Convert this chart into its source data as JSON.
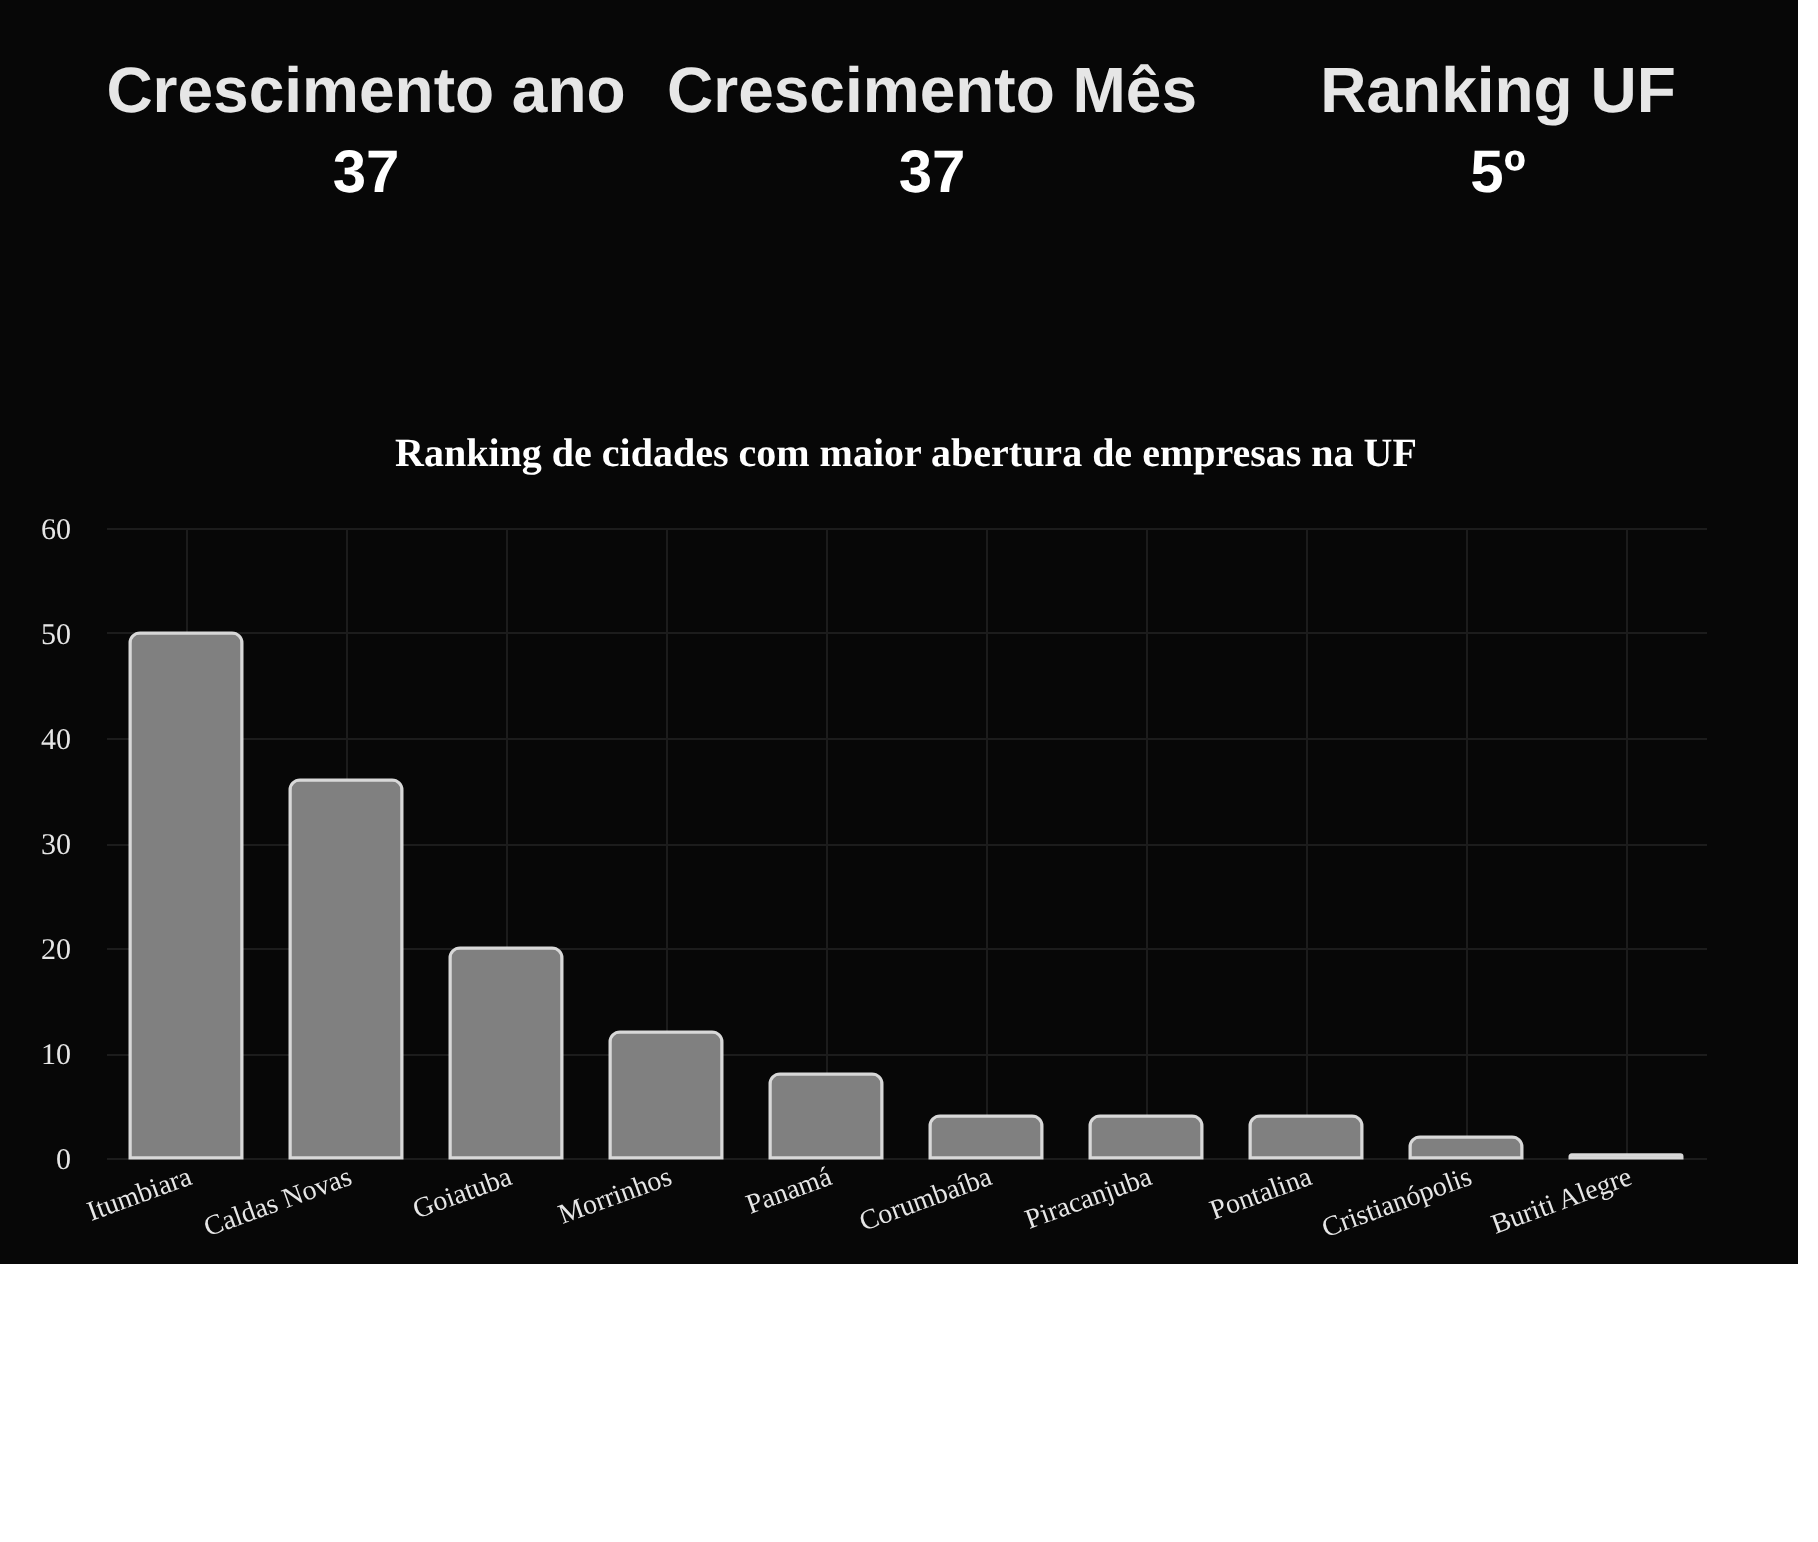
{
  "chart_data": [
    {
      "type": "other",
      "title": "Crescimento ano",
      "annotations": [
        "37"
      ]
    },
    {
      "type": "other",
      "title": "Crescimento Mês",
      "annotations": [
        "37"
      ]
    },
    {
      "type": "other",
      "title": "Ranking UF",
      "annotations": [
        "5º"
      ]
    },
    {
      "type": "bar",
      "title": "Ranking de cidades com maior abertura de empresas na UF",
      "categories": [
        "Itumbiara",
        "Caldas Novas",
        "Goiatuba",
        "Morrinhos",
        "Panamá",
        "Corumbaíba",
        "Piracanjuba",
        "Pontalina",
        "Cristianópolis",
        "Buriti Alegre"
      ],
      "values": [
        50,
        36,
        20,
        12,
        8,
        4,
        4,
        4,
        2,
        0.3
      ],
      "color": "#808080",
      "ylim": [
        0,
        60
      ],
      "yticks": [
        0,
        10,
        20,
        30,
        40,
        50,
        60
      ],
      "grid": true
    }
  ]
}
